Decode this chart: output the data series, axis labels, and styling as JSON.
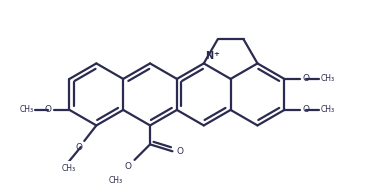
{
  "bg_color": "#ffffff",
  "line_color": "#2b2b50",
  "line_width": 1.6,
  "fig_width": 3.87,
  "fig_height": 1.85,
  "dpi": 100,
  "xlim": [
    0,
    387
  ],
  "ylim": [
    0,
    185
  ]
}
